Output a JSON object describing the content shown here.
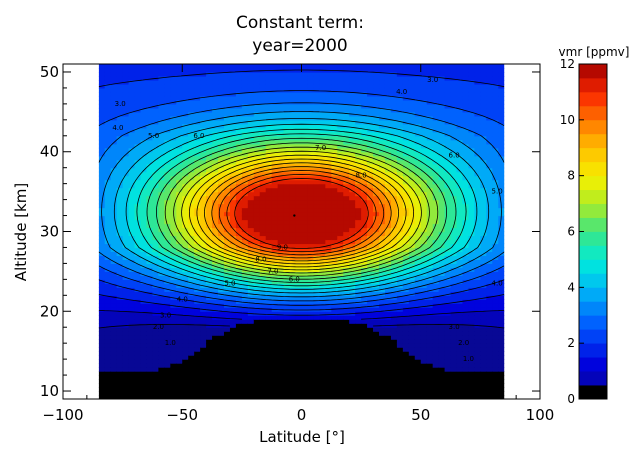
{
  "chart_data": {
    "type": "heatmap",
    "title_lines": [
      "Constant term:",
      "year=2000"
    ],
    "xlabel": "Latitude [°]",
    "ylabel": "Altitude [km]",
    "xlim": [
      -100,
      100
    ],
    "ylim": [
      9,
      51
    ],
    "x_data_range": [
      -85,
      85
    ],
    "xticks": [
      "−100",
      "−50",
      "0",
      "50",
      "100"
    ],
    "xtick_values": [
      -100,
      -50,
      0,
      50,
      100
    ],
    "yticks": [
      "10",
      "20",
      "30",
      "40",
      "50"
    ],
    "ytick_values": [
      10,
      20,
      30,
      40,
      50
    ],
    "colorbar": {
      "title": "vmr [ppmv]",
      "min": 0,
      "max": 12,
      "levels": 24,
      "ticks": [
        "0",
        "2",
        "4",
        "6",
        "8",
        "10",
        "12"
      ],
      "tick_values": [
        0,
        2,
        4,
        6,
        8,
        10,
        12
      ]
    },
    "contour_interval": 0.5,
    "peak": {
      "latitude": 0,
      "altitude": 32,
      "value": 10.3
    },
    "contour_labels": [
      {
        "text": "3.0",
        "lat": 55,
        "alt": 49.0
      },
      {
        "text": "4.0",
        "lat": 42,
        "alt": 47.5
      },
      {
        "text": "3.0",
        "lat": -76,
        "alt": 46.0
      },
      {
        "text": "4.0",
        "lat": -77,
        "alt": 43.0
      },
      {
        "text": "5.0",
        "lat": -62,
        "alt": 42.0
      },
      {
        "text": "6.0",
        "lat": -43,
        "alt": 42.0
      },
      {
        "text": "7.0",
        "lat": 8,
        "alt": 40.5
      },
      {
        "text": "6.0",
        "lat": 64,
        "alt": 39.5
      },
      {
        "text": "8.0",
        "lat": 25,
        "alt": 37.0
      },
      {
        "text": "5.0",
        "lat": 82,
        "alt": 35.0
      },
      {
        "text": "9.0",
        "lat": -8,
        "alt": 28.0
      },
      {
        "text": "8.0",
        "lat": -17,
        "alt": 26.5
      },
      {
        "text": "7.0",
        "lat": -12,
        "alt": 25.0
      },
      {
        "text": "6.0",
        "lat": -3,
        "alt": 24.0
      },
      {
        "text": "5.0",
        "lat": -30,
        "alt": 23.5
      },
      {
        "text": "4.0",
        "lat": 82,
        "alt": 23.5
      },
      {
        "text": "4.0",
        "lat": -50,
        "alt": 21.5
      },
      {
        "text": "3.0",
        "lat": -57,
        "alt": 19.5
      },
      {
        "text": "3.0",
        "lat": 64,
        "alt": 18.0
      },
      {
        "text": "2.0",
        "lat": -60,
        "alt": 18.0
      },
      {
        "text": "1.0",
        "lat": -55,
        "alt": 16.0
      },
      {
        "text": "2.0",
        "lat": 68,
        "alt": 16.0
      },
      {
        "text": "1.0",
        "lat": 70,
        "alt": 14.0
      }
    ]
  }
}
